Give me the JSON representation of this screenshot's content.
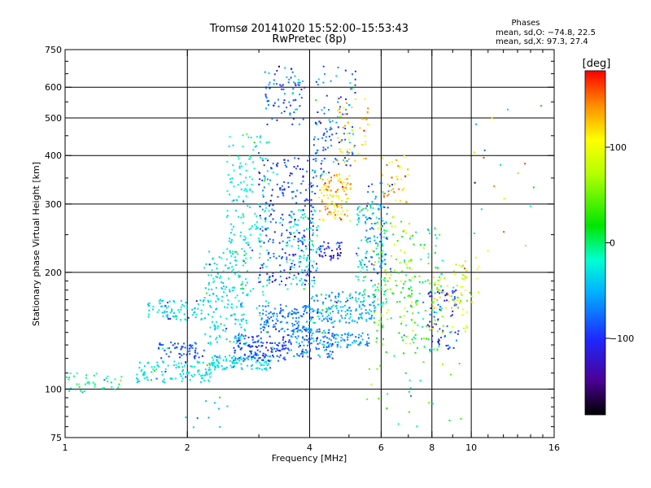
{
  "chart_data": {
    "type": "scatter",
    "title": "Tromsø 20141020 15:52:00–15:53:43",
    "subtitle": "RwPretec (8p)",
    "xlabel": "Frequency [MHz]",
    "ylabel": "Stationary phase Virtual Height [km]",
    "x_scale": "log",
    "y_scale": "log",
    "xlim": [
      1,
      16
    ],
    "ylim": [
      75,
      750
    ],
    "grid": true,
    "x_ticks": [
      1,
      2,
      4,
      6,
      8,
      10,
      16
    ],
    "x_tick_labels": [
      "1",
      "2",
      "4",
      "6",
      "8",
      "10",
      "16"
    ],
    "x_grid": [
      2,
      4,
      6,
      8,
      10
    ],
    "y_ticks": [
      75,
      100,
      200,
      300,
      400,
      500,
      600,
      750
    ],
    "y_tick_labels": [
      "75",
      "100",
      "200",
      "300",
      "400",
      "500",
      "600",
      "750"
    ],
    "y_grid": [
      100,
      200,
      300,
      400,
      500,
      600
    ],
    "phases_box": {
      "title": "Phases",
      "line_o": "mean, sd,O: −74.8, 22.5",
      "line_x": "mean, sd,X:  97.3, 27.4"
    },
    "colorbar": {
      "label": "[deg]",
      "range": [
        -180,
        180
      ],
      "ticks": [
        100,
        0,
        -100
      ],
      "tick_labels": [
        "100",
        "0",
        "−100"
      ],
      "colormap": "rainbow"
    },
    "clusters": [
      {
        "x": [
          1.0,
          1.4
        ],
        "y": [
          98,
          110
        ],
        "phase": [
          -20,
          5
        ],
        "n": 40
      },
      {
        "x": [
          1.5,
          2.3
        ],
        "y": [
          104,
          118
        ],
        "phase": [
          -40,
          -20
        ],
        "n": 120
      },
      {
        "x": [
          2.3,
          3.2
        ],
        "y": [
          112,
          122
        ],
        "phase": [
          -40,
          -25
        ],
        "n": 100
      },
      {
        "x": [
          1.7,
          2.2
        ],
        "y": [
          120,
          132
        ],
        "phase": [
          -100,
          -70
        ],
        "n": 60
      },
      {
        "x": [
          2.6,
          3.6
        ],
        "y": [
          118,
          138
        ],
        "phase": [
          -110,
          -70
        ],
        "n": 150
      },
      {
        "x": [
          3.6,
          4.6
        ],
        "y": [
          120,
          145
        ],
        "phase": [
          -100,
          -40
        ],
        "n": 110
      },
      {
        "x": [
          4.4,
          5.6
        ],
        "y": [
          128,
          140
        ],
        "phase": [
          -90,
          -40
        ],
        "n": 70
      },
      {
        "x": [
          1.6,
          2.2
        ],
        "y": [
          150,
          170
        ],
        "phase": [
          -50,
          -25
        ],
        "n": 80
      },
      {
        "x": [
          2.2,
          2.8
        ],
        "y": [
          130,
          230
        ],
        "phase": [
          -50,
          -20
        ],
        "n": 170
      },
      {
        "x": [
          3.0,
          4.0
        ],
        "y": [
          140,
          165
        ],
        "phase": [
          -90,
          -50
        ],
        "n": 130
      },
      {
        "x": [
          4.0,
          5.8
        ],
        "y": [
          148,
          178
        ],
        "phase": [
          -80,
          -30
        ],
        "n": 160
      },
      {
        "x": [
          2.5,
          3.2
        ],
        "y": [
          160,
          460
        ],
        "phase": [
          -40,
          -10
        ],
        "n": 190
      },
      {
        "x": [
          3.0,
          4.2
        ],
        "y": [
          185,
          400
        ],
        "phase": [
          -120,
          -60
        ],
        "n": 260
      },
      {
        "x": [
          3.5,
          4.2
        ],
        "y": [
          180,
          290
        ],
        "phase": [
          -40,
          -10
        ],
        "n": 90
      },
      {
        "x": [
          3.1,
          3.9
        ],
        "y": [
          480,
          680
        ],
        "phase": [
          -120,
          -40
        ],
        "n": 80
      },
      {
        "x": [
          4.1,
          5.2
        ],
        "y": [
          350,
          680
        ],
        "phase": [
          -110,
          -30
        ],
        "n": 110
      },
      {
        "x": [
          4.2,
          5.1
        ],
        "y": [
          270,
          360
        ],
        "phase": [
          80,
          160
        ],
        "n": 110
      },
      {
        "x": [
          4.2,
          4.8
        ],
        "y": [
          215,
          240
        ],
        "phase": [
          -130,
          -90
        ],
        "n": 40
      },
      {
        "x": [
          4.6,
          5.6
        ],
        "y": [
          380,
          560
        ],
        "phase": [
          80,
          150
        ],
        "n": 50
      },
      {
        "x": [
          5.2,
          6.2
        ],
        "y": [
          160,
          300
        ],
        "phase": [
          -60,
          0
        ],
        "n": 130
      },
      {
        "x": [
          5.5,
          6.4
        ],
        "y": [
          200,
          340
        ],
        "phase": [
          -100,
          -50
        ],
        "n": 60
      },
      {
        "x": [
          5.7,
          7.2
        ],
        "y": [
          130,
          280
        ],
        "phase": [
          0,
          100
        ],
        "n": 110
      },
      {
        "x": [
          6.0,
          7.0
        ],
        "y": [
          300,
          400
        ],
        "phase": [
          90,
          160
        ],
        "n": 40
      },
      {
        "x": [
          6.8,
          8.5
        ],
        "y": [
          125,
          260
        ],
        "phase": [
          -40,
          60
        ],
        "n": 100
      },
      {
        "x": [
          7.8,
          9.3
        ],
        "y": [
          125,
          180
        ],
        "phase": [
          -130,
          -60
        ],
        "n": 70
      },
      {
        "x": [
          8.0,
          9.8
        ],
        "y": [
          140,
          210
        ],
        "phase": [
          40,
          130
        ],
        "n": 60
      },
      {
        "x": [
          9.0,
          10.5
        ],
        "y": [
          165,
          220
        ],
        "phase": [
          60,
          110
        ],
        "n": 20
      },
      {
        "x": [
          5.5,
          9.5
        ],
        "y": [
          80,
          125
        ],
        "phase": [
          -40,
          80
        ],
        "n": 30
      },
      {
        "x": [
          10.0,
          15.0
        ],
        "y": [
          220,
          560
        ],
        "phase": [
          -120,
          170
        ],
        "n": 20
      },
      {
        "x": [
          1.9,
          2.6
        ],
        "y": [
          78,
          98
        ],
        "phase": [
          -60,
          -20
        ],
        "n": 10
      }
    ]
  }
}
